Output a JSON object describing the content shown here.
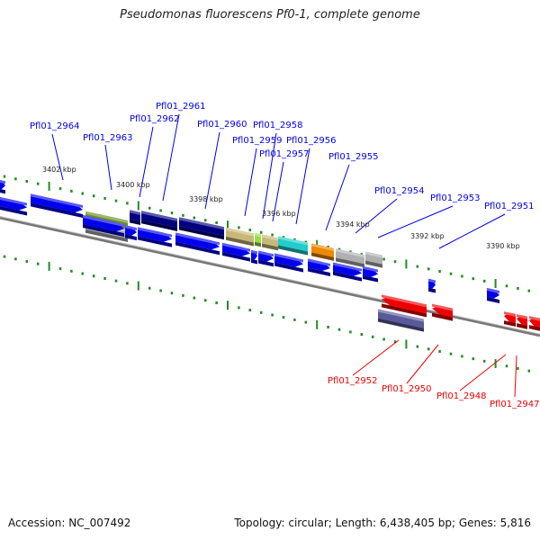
{
  "title": "Pseudomonas fluorescens Pf0-1, complete genome",
  "footer": {
    "accession": "Accession: NC_007492",
    "summary": "Topology: circular; Length: 6,438,405 bp; Genes: 5,816"
  },
  "colors": {
    "forward": "#0000ee",
    "reverse": "#ee0000",
    "dark_navy": "#000080",
    "olive": "#6b8e23",
    "khaki": "#c8b878",
    "lime": "#99dd44",
    "cyan": "#22cccc",
    "orange": "#ee8800",
    "grey": "#b0b0b0",
    "slate": "#5a5a9a",
    "tick": "#228b22",
    "backbone": "#777777"
  },
  "position_labels": [
    "3402 kbp",
    "3400 kbp",
    "3398 kbp",
    "3396 kbp",
    "3394 kbp",
    "3392 kbp",
    "3390 kbp"
  ],
  "forward_gene_labels": [
    "Pfl01_2964",
    "Pfl01_2963",
    "Pfl01_2962",
    "Pfl01_2961",
    "Pfl01_2960",
    "Pfl01_2959",
    "Pfl01_2958",
    "Pfl01_2957",
    "Pfl01_2956",
    "Pfl01_2955",
    "Pfl01_2954",
    "Pfl01_2953",
    "Pfl01_2951"
  ],
  "reverse_gene_labels": [
    "Pfl01_2952",
    "Pfl01_2950",
    "Pfl01_2948",
    "Pfl01_2947"
  ]
}
